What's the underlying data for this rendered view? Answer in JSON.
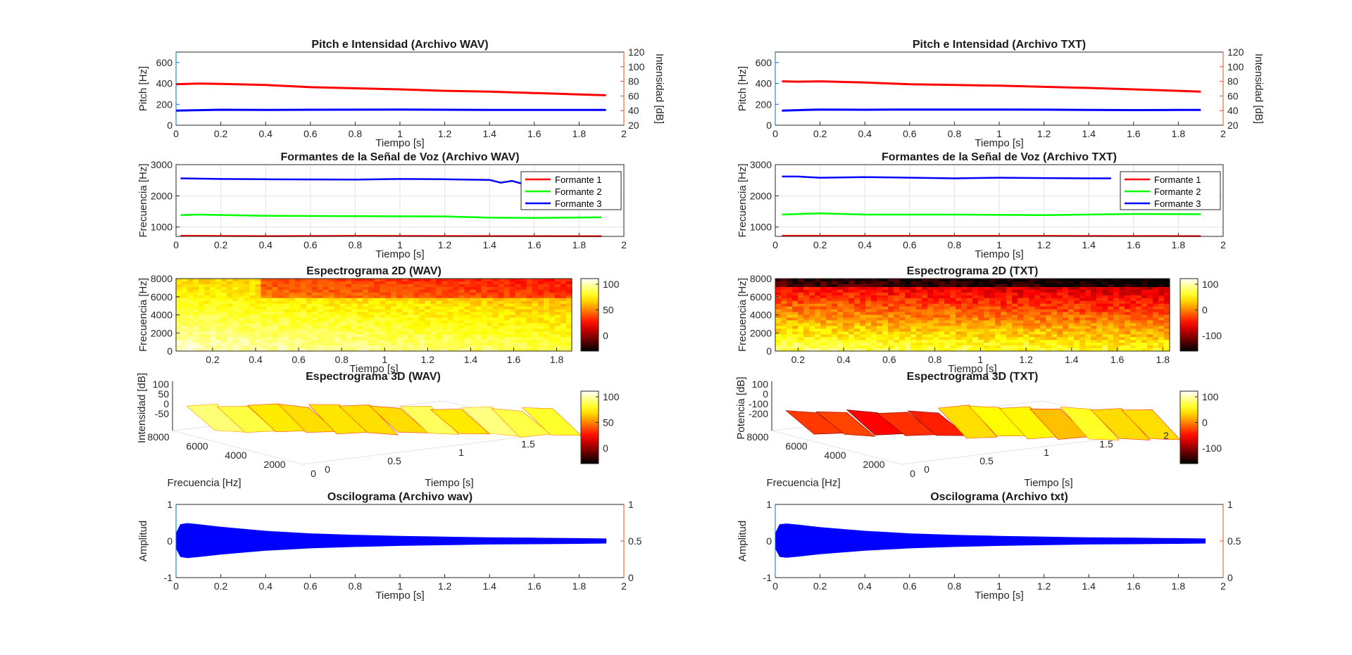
{
  "figure": {
    "background": "#ffffff"
  },
  "colors": {
    "axis": "#262626",
    "grid": "#e3e3e3",
    "left_axis": "#0072BD",
    "right_axis": "#D95319",
    "formante1": "#ff0000",
    "formante2": "#00ff00",
    "formante3": "#0000ff",
    "pitch": "#0000ff",
    "intensity": "#ff0000",
    "oscillogram": "#0000ff"
  },
  "chart_data": [
    {
      "type": "line",
      "title": "Pitch e Intensidad (Archivo WAV)",
      "xlabel": "Tiempo [s]",
      "ylabel": "Pitch [Hz]",
      "ylabel_right": "Intensidad [dB]",
      "xlim": [
        0,
        2
      ],
      "ylim": [
        0,
        700
      ],
      "ylim_right": [
        20,
        120
      ],
      "xticks": [
        "0",
        "0.2",
        "0.4",
        "0.6",
        "0.8",
        "1",
        "1.2",
        "1.4",
        "1.6",
        "1.8",
        "2"
      ],
      "yticks": [
        "0",
        "200",
        "400",
        "600"
      ],
      "yticks_right": [
        "20",
        "40",
        "60",
        "80",
        "100",
        "120"
      ],
      "series": [
        {
          "axis": "left",
          "color": "#0000ff",
          "x": [
            0,
            0.2,
            0.4,
            0.6,
            0.8,
            1.0,
            1.2,
            1.4,
            1.6,
            1.8,
            1.92
          ],
          "y": [
            140,
            148,
            146,
            148,
            149,
            150,
            148,
            147,
            146,
            146,
            147
          ]
        },
        {
          "axis": "right",
          "color": "#ff0000",
          "x": [
            0,
            0.1,
            0.2,
            0.4,
            0.6,
            0.8,
            1.0,
            1.2,
            1.4,
            1.6,
            1.8,
            1.92
          ],
          "y": [
            76,
            77,
            76.5,
            75,
            72,
            70.5,
            69,
            67,
            66,
            64,
            62,
            61
          ]
        }
      ]
    },
    {
      "type": "line",
      "title": "Pitch e Intensidad (Archivo TXT)",
      "xlabel": "Tiempo [s]",
      "ylabel": "Pitch [Hz]",
      "ylabel_right": "Intensidad [dB]",
      "xlim": [
        0,
        2
      ],
      "ylim": [
        0,
        700
      ],
      "ylim_right": [
        20,
        120
      ],
      "xticks": [
        "0",
        "0.2",
        "0.4",
        "0.6",
        "0.8",
        "1",
        "1.2",
        "1.4",
        "1.6",
        "1.8",
        "2"
      ],
      "yticks": [
        "0",
        "200",
        "400",
        "600"
      ],
      "yticks_right": [
        "20",
        "40",
        "60",
        "80",
        "100",
        "120"
      ],
      "series": [
        {
          "axis": "left",
          "color": "#0000ff",
          "x": [
            0.03,
            0.2,
            0.4,
            0.6,
            0.8,
            1.0,
            1.2,
            1.4,
            1.6,
            1.8,
            1.9
          ],
          "y": [
            140,
            150,
            148,
            150,
            150,
            150,
            149,
            146,
            145,
            146,
            146
          ]
        },
        {
          "axis": "right",
          "color": "#ff0000",
          "x": [
            0.03,
            0.1,
            0.2,
            0.4,
            0.6,
            0.8,
            1.0,
            1.2,
            1.4,
            1.6,
            1.8,
            1.9
          ],
          "y": [
            80,
            79.5,
            80,
            78.5,
            76,
            75,
            74,
            72.5,
            71,
            69,
            67,
            66
          ]
        }
      ]
    },
    {
      "type": "line",
      "title": "Formantes de la Señal de Voz (Archivo WAV)",
      "xlabel": "Tiempo [s]",
      "ylabel": "Frecuencia [Hz]",
      "xlim": [
        0,
        2
      ],
      "ylim": [
        700,
        3000
      ],
      "xticks": [
        "0",
        "0.2",
        "0.4",
        "0.6",
        "0.8",
        "1",
        "1.2",
        "1.4",
        "1.6",
        "1.8",
        "2"
      ],
      "yticks": [
        "1000",
        "2000",
        "3000"
      ],
      "legend": [
        "Formante 1",
        "Formante 2",
        "Formante 3"
      ],
      "legend_position": "top-right",
      "series": [
        {
          "name": "Formante 1",
          "color": "#ff0000",
          "x": [
            0.02,
            0.4,
            0.8,
            1.2,
            1.6,
            1.9
          ],
          "y": [
            720,
            710,
            715,
            712,
            708,
            705
          ]
        },
        {
          "name": "Formante 2",
          "color": "#00ff00",
          "x": [
            0.02,
            0.1,
            0.4,
            0.8,
            1.2,
            1.4,
            1.6,
            1.9
          ],
          "y": [
            1380,
            1400,
            1360,
            1350,
            1340,
            1300,
            1290,
            1310
          ]
        },
        {
          "name": "Formante 3",
          "color": "#0000ff",
          "x": [
            0.02,
            0.2,
            0.4,
            0.8,
            1.0,
            1.2,
            1.4,
            1.45,
            1.5,
            1.55
          ],
          "y": [
            2560,
            2540,
            2530,
            2520,
            2540,
            2530,
            2510,
            2420,
            2480,
            2380
          ]
        }
      ]
    },
    {
      "type": "line",
      "title": "Formantes de la Señal de Voz (Archivo TXT)",
      "xlabel": "Tiempo [s]",
      "ylabel": "Frecuencia [Hz]",
      "xlim": [
        0,
        2
      ],
      "ylim": [
        700,
        3000
      ],
      "xticks": [
        "0",
        "0.2",
        "0.4",
        "0.6",
        "0.8",
        "1",
        "1.2",
        "1.4",
        "1.6",
        "1.8",
        "2"
      ],
      "yticks": [
        "1000",
        "2000",
        "3000"
      ],
      "legend": [
        "Formante 1",
        "Formante 2",
        "Formante 3"
      ],
      "legend_position": "top-right",
      "series": [
        {
          "name": "Formante 1",
          "color": "#ff0000",
          "x": [
            0.03,
            0.4,
            0.8,
            1.2,
            1.6,
            1.9
          ],
          "y": [
            720,
            715,
            718,
            715,
            712,
            710
          ]
        },
        {
          "name": "Formante 2",
          "color": "#00ff00",
          "x": [
            0.03,
            0.2,
            0.4,
            0.8,
            1.2,
            1.6,
            1.9
          ],
          "y": [
            1400,
            1440,
            1400,
            1400,
            1380,
            1420,
            1410
          ]
        },
        {
          "name": "Formante 3",
          "color": "#0000ff",
          "x": [
            0.03,
            0.1,
            0.2,
            0.4,
            0.8,
            1.0,
            1.2,
            1.4,
            1.5
          ],
          "y": [
            2620,
            2620,
            2580,
            2600,
            2560,
            2580,
            2570,
            2560,
            2560
          ]
        }
      ]
    },
    {
      "type": "heatmap",
      "title": "Espectrograma 2D (WAV)",
      "xlabel": "Tiempo [s]",
      "ylabel": "Frecuencia [Hz]",
      "xlim": [
        0.03,
        1.87
      ],
      "ylim": [
        0,
        8000
      ],
      "xticks": [
        "0.2",
        "0.4",
        "0.6",
        "0.8",
        "1",
        "1.2",
        "1.4",
        "1.6",
        "1.8"
      ],
      "yticks": [
        "0",
        "2000",
        "4000",
        "6000",
        "8000"
      ],
      "colorbar": [
        "100",
        "50",
        "0"
      ],
      "colormap": "hot"
    },
    {
      "type": "heatmap",
      "title": "Espectrograma 2D (TXT)",
      "xlabel": "Tiempo [s]",
      "ylabel": "Frecuencia [Hz]",
      "xlim": [
        0.1,
        1.83
      ],
      "ylim": [
        0,
        8000
      ],
      "xticks": [
        "0.2",
        "0.4",
        "0.6",
        "0.8",
        "1",
        "1.2",
        "1.4",
        "1.6",
        "1.8"
      ],
      "yticks": [
        "0",
        "2000",
        "4000",
        "6000",
        "8000"
      ],
      "colorbar": [
        "100",
        "0",
        "-100"
      ],
      "colormap": "hot"
    },
    {
      "type": "area",
      "title": "Espectrograma 3D (WAV)",
      "xlabel": "Tiempo [s]",
      "ylabel": "Frecuencia [Hz]",
      "zlabel": "Intensidad [dB]",
      "xticks": [
        "0",
        "0.5",
        "1",
        "1.5"
      ],
      "yticks": [
        "8000",
        "6000",
        "4000",
        "2000",
        "0"
      ],
      "zticks": [
        "100",
        "50",
        "0",
        "-50"
      ],
      "colorbar": [
        "100",
        "50",
        "0"
      ],
      "colormap": "hot"
    },
    {
      "type": "area",
      "title": "Espectrograma 3D (TXT)",
      "xlabel": "Tiempo [s]",
      "ylabel": "Frecuencia [Hz]",
      "zlabel": "Potencia [dB]",
      "xticks": [
        "0",
        "0.5",
        "1",
        "1.5",
        "2"
      ],
      "yticks": [
        "8000",
        "6000",
        "4000",
        "2000",
        "0"
      ],
      "zticks": [
        "100",
        "0",
        "-100",
        "-200"
      ],
      "colorbar": [
        "100",
        "0",
        "-100"
      ],
      "colormap": "hot"
    },
    {
      "type": "area",
      "title": "Oscilograma (Archivo wav)",
      "xlabel": "Tiempo [s]",
      "ylabel": "Amplitud",
      "xlim": [
        0,
        2
      ],
      "ylim": [
        -1,
        1
      ],
      "ylim_right": [
        0,
        1
      ],
      "xticks": [
        "0",
        "0.2",
        "0.4",
        "0.6",
        "0.8",
        "1",
        "1.2",
        "1.4",
        "1.6",
        "1.8",
        "2"
      ],
      "yticks": [
        "-1",
        "0",
        "1"
      ],
      "yticks_right": [
        "0",
        "0.5",
        "1"
      ],
      "envelope": {
        "x": [
          0,
          0.02,
          0.05,
          0.1,
          0.2,
          0.4,
          0.6,
          0.8,
          1.0,
          1.2,
          1.4,
          1.6,
          1.8,
          1.92
        ],
        "y": [
          0.2,
          0.45,
          0.48,
          0.45,
          0.38,
          0.27,
          0.2,
          0.16,
          0.13,
          0.11,
          0.09,
          0.08,
          0.07,
          0.06
        ]
      }
    },
    {
      "type": "area",
      "title": "Oscilograma (Archivo txt)",
      "xlabel": "Tiempo [s]",
      "ylabel": "Amplitud",
      "xlim": [
        0,
        2
      ],
      "ylim": [
        -1,
        1
      ],
      "ylim_right": [
        0,
        1
      ],
      "xticks": [
        "0",
        "0.2",
        "0.4",
        "0.6",
        "0.8",
        "1",
        "1.2",
        "1.4",
        "1.6",
        "1.8",
        "2"
      ],
      "yticks": [
        "-1",
        "0",
        "1"
      ],
      "yticks_right": [
        "0",
        "0.5",
        "1"
      ],
      "envelope": {
        "x": [
          0,
          0.02,
          0.05,
          0.1,
          0.2,
          0.4,
          0.6,
          0.8,
          1.0,
          1.2,
          1.4,
          1.6,
          1.8,
          1.92
        ],
        "y": [
          0.2,
          0.45,
          0.47,
          0.44,
          0.37,
          0.27,
          0.2,
          0.16,
          0.13,
          0.11,
          0.09,
          0.08,
          0.07,
          0.06
        ]
      }
    }
  ]
}
